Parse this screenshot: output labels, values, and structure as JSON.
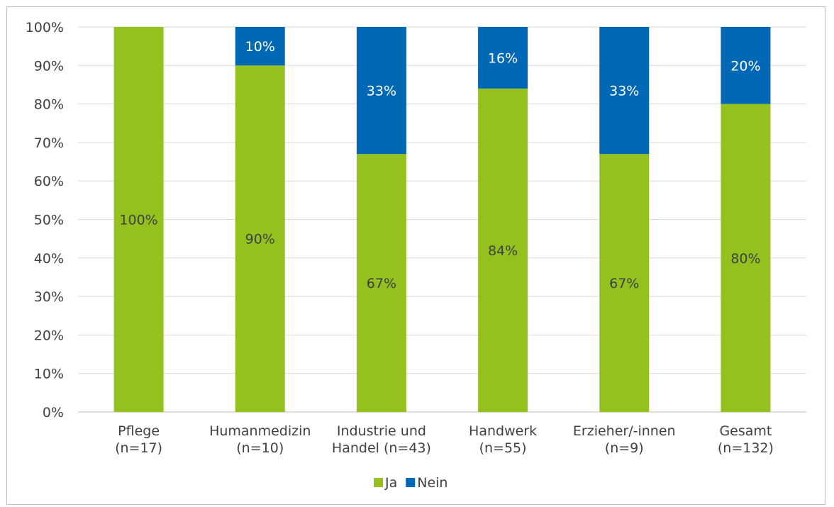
{
  "chart_data": {
    "type": "bar",
    "stacked": true,
    "normalized": true,
    "categories": [
      [
        "Pflege",
        "(n=17)"
      ],
      [
        "Humanmedizin",
        "(n=10)"
      ],
      [
        "Industrie und",
        "Handel (n=43)"
      ],
      [
        "Handwerk",
        "(n=55)"
      ],
      [
        "Erzieher/-innen",
        "(n=9)"
      ],
      [
        "Gesamt",
        "(n=132)"
      ]
    ],
    "series": [
      {
        "name": "Ja",
        "color": "#95c11f",
        "values": [
          100,
          90,
          67,
          84,
          67,
          80
        ],
        "labels": [
          "100%",
          "90%",
          "67%",
          "84%",
          "67%",
          "80%"
        ]
      },
      {
        "name": "Nein",
        "color": "#0068b4",
        "values": [
          0,
          10,
          33,
          16,
          33,
          20
        ],
        "labels": [
          "",
          "10%",
          "33%",
          "16%",
          "33%",
          "20%"
        ]
      }
    ],
    "ylim": [
      0,
      100
    ],
    "yticks": [
      "0%",
      "10%",
      "20%",
      "30%",
      "40%",
      "50%",
      "60%",
      "70%",
      "80%",
      "90%",
      "100%"
    ],
    "grid": true,
    "legend": "bottom",
    "title": "",
    "xlabel": "",
    "ylabel": ""
  }
}
